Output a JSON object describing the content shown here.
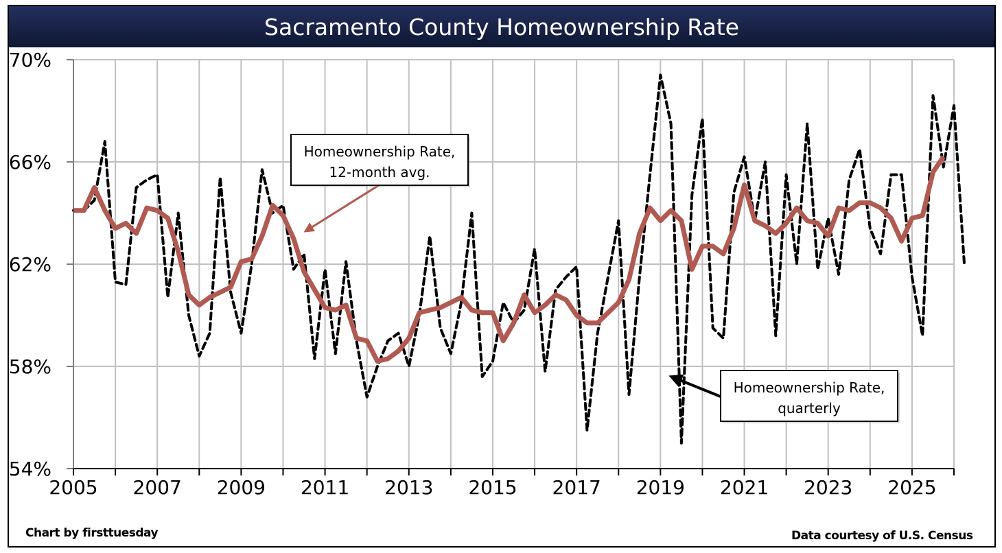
{
  "chart_data": {
    "type": "line",
    "title": "Sacramento County Homeownership Rate",
    "xlabel": "",
    "ylabel": "",
    "ylim": [
      54,
      70
    ],
    "xlim": [
      2005,
      2026
    ],
    "y_ticks": [
      {
        "value": 54,
        "label": "54%"
      },
      {
        "value": 58,
        "label": "58%"
      },
      {
        "value": 62,
        "label": "62%"
      },
      {
        "value": 66,
        "label": "66%"
      },
      {
        "value": 70,
        "label": "70%"
      }
    ],
    "x_ticks": [
      {
        "value": 2005,
        "label": "2005"
      },
      {
        "value": 2007,
        "label": "2007"
      },
      {
        "value": 2009,
        "label": "2009"
      },
      {
        "value": 2011,
        "label": "2011"
      },
      {
        "value": 2013,
        "label": "2013"
      },
      {
        "value": 2015,
        "label": "2015"
      },
      {
        "value": 2017,
        "label": "2017"
      },
      {
        "value": 2019,
        "label": "2019"
      },
      {
        "value": 2021,
        "label": "2021"
      },
      {
        "value": 2023,
        "label": "2023"
      },
      {
        "value": 2025,
        "label": "2025"
      }
    ],
    "grid": true,
    "x_start": 2005,
    "x_step": 0.25,
    "series": [
      {
        "name": "Homeownership Rate, quarterly",
        "style": "dashed",
        "color": "#000000",
        "values": [
          64.1,
          64.1,
          64.5,
          66.8,
          61.3,
          61.2,
          65.0,
          65.3,
          65.5,
          60.7,
          64.0,
          60.0,
          58.4,
          59.3,
          65.4,
          60.9,
          59.3,
          62.0,
          65.7,
          64.0,
          64.3,
          61.8,
          62.4,
          58.3,
          61.8,
          58.5,
          62.1,
          59.0,
          56.8,
          58.0,
          59.0,
          59.3,
          58.0,
          60.0,
          63.1,
          59.5,
          58.5,
          60.5,
          64.0,
          57.6,
          58.2,
          60.5,
          59.7,
          60.2,
          62.6,
          57.8,
          61.0,
          61.5,
          61.9,
          55.5,
          59.3,
          61.5,
          63.7,
          56.9,
          61.5,
          65.5,
          69.4,
          67.5,
          55.0,
          64.7,
          67.7,
          59.5,
          59.1,
          64.8,
          66.2,
          63.7,
          66.0,
          59.2,
          65.5,
          62.0,
          67.5,
          61.8,
          63.8,
          61.6,
          65.3,
          66.5,
          63.4,
          62.4,
          65.5,
          65.5,
          61.5,
          59.2,
          68.6,
          65.8,
          68.2,
          61.9
        ]
      },
      {
        "name": "Homeownership Rate, 12-month avg.",
        "style": "solid",
        "color": "#b05a52",
        "values": [
          64.1,
          64.1,
          65.0,
          64.1,
          63.4,
          63.6,
          63.2,
          64.2,
          64.1,
          63.8,
          62.5,
          60.8,
          60.4,
          60.7,
          60.9,
          61.1,
          62.1,
          62.2,
          63.1,
          64.3,
          63.9,
          63.0,
          61.7,
          61.0,
          60.3,
          60.2,
          60.4,
          59.1,
          59.0,
          58.2,
          58.3,
          58.6,
          59.1,
          60.1,
          60.2,
          60.3,
          60.5,
          60.7,
          60.2,
          60.1,
          60.1,
          59.0,
          59.7,
          60.8,
          60.1,
          60.4,
          60.8,
          60.6,
          60.0,
          59.7,
          59.7,
          60.1,
          60.5,
          61.4,
          63.2,
          64.2,
          63.7,
          64.1,
          63.7,
          61.8,
          62.7,
          62.7,
          62.4,
          63.4,
          65.1,
          63.7,
          63.5,
          63.2,
          63.6,
          64.2,
          63.7,
          63.6,
          63.1,
          64.2,
          64.1,
          64.4,
          64.4,
          64.2,
          63.8,
          62.9,
          63.8,
          63.9,
          65.6,
          66.2
        ]
      }
    ],
    "annotations": [
      {
        "text_lines": [
          "Homeownership Rate,",
          "12-month avg."
        ],
        "points_to": "Homeownership Rate, 12-month avg.",
        "arrow_color": "#b05a52"
      },
      {
        "text_lines": [
          "Homeownership Rate,",
          "quarterly"
        ],
        "points_to": "Homeownership Rate, quarterly",
        "arrow_color": "#000000"
      }
    ]
  },
  "credits": {
    "left_prefix": "Chart by ",
    "left_brand": "firsttuesday",
    "right": "Data courtesy of U.S. Census"
  }
}
